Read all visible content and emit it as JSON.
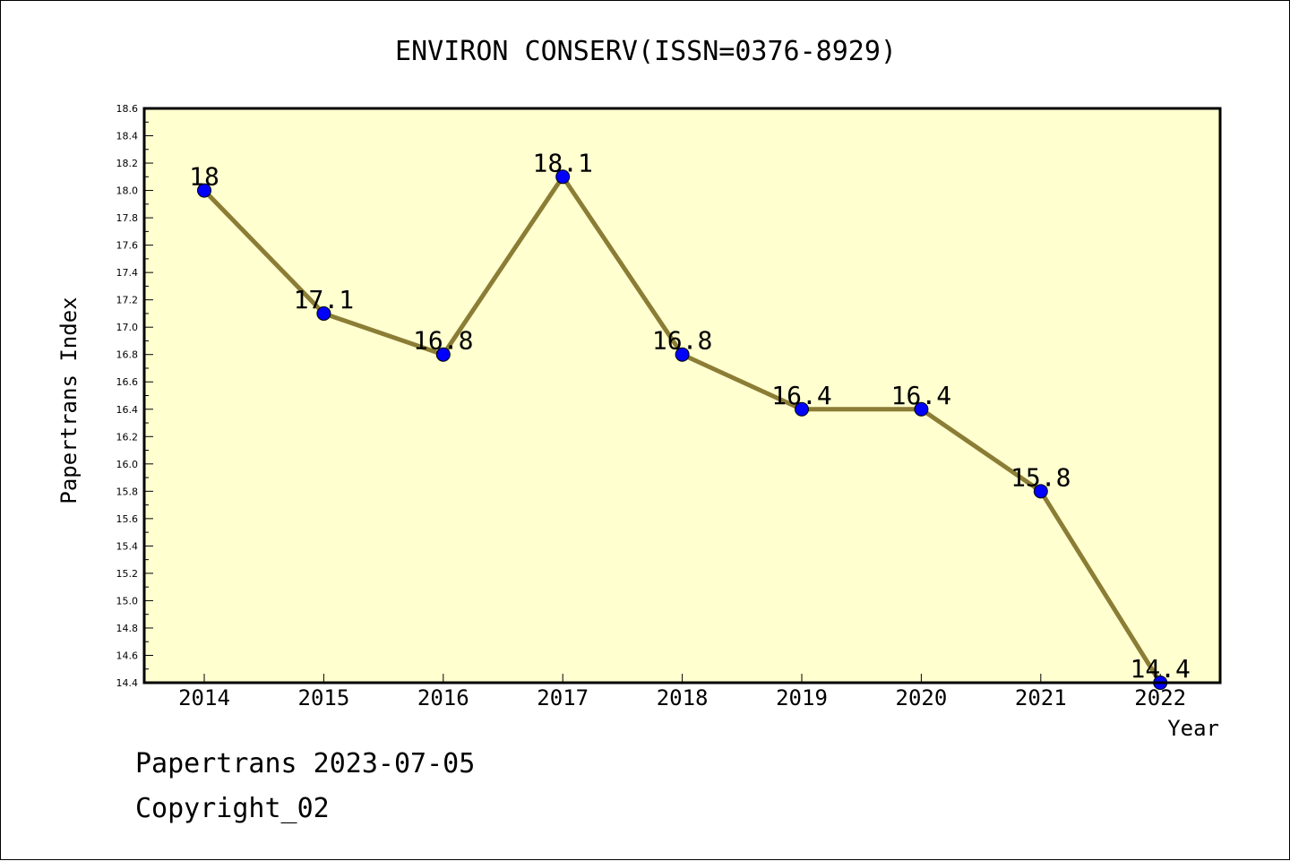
{
  "chart_data": {
    "type": "line",
    "title": "ENVIRON CONSERV(ISSN=0376-8929)",
    "xlabel": "Year",
    "ylabel": "Papertrans Index",
    "categories": [
      "2014",
      "2015",
      "2016",
      "2017",
      "2018",
      "2019",
      "2020",
      "2021",
      "2022"
    ],
    "series": [
      {
        "values": [
          18.0,
          17.1,
          16.8,
          18.1,
          16.8,
          16.4,
          16.4,
          15.8,
          14.4
        ],
        "data_labels": [
          "18",
          "17.1",
          "16.8",
          "18.1",
          "16.8",
          "16.4",
          "16.4",
          "15.8",
          "14.4"
        ]
      }
    ],
    "ylim": [
      14.4,
      18.6
    ],
    "yticks": [
      "14.4",
      "14.6",
      "14.8",
      "15.0",
      "15.2",
      "15.4",
      "15.6",
      "15.8",
      "16.0",
      "16.2",
      "16.4",
      "16.6",
      "16.8",
      "17.0",
      "17.2",
      "17.4",
      "17.6",
      "17.8",
      "18.0",
      "18.2",
      "18.4",
      "18.6"
    ],
    "grid": false,
    "colors": {
      "plot_background": "#ffffd0",
      "line": "#8b7d35",
      "marker": "#0000ff"
    }
  },
  "footer": {
    "line1": "Papertrans 2023-07-05",
    "line2": "Copyright_02"
  }
}
